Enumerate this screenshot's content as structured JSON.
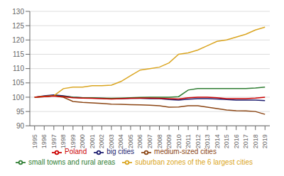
{
  "chart_data": {
    "type": "line",
    "x": [
      1995,
      1996,
      1997,
      1998,
      1999,
      2000,
      2001,
      2002,
      2003,
      2004,
      2005,
      2006,
      2007,
      2008,
      2009,
      2010,
      2011,
      2012,
      2013,
      2014,
      2015,
      2016,
      2017,
      2018,
      2019
    ],
    "series": [
      {
        "name": "big cities",
        "color": "#1a1a6e",
        "values": [
          100,
          100.5,
          100.8,
          100.5,
          100.0,
          99.8,
          99.7,
          99.6,
          99.5,
          99.5,
          99.6,
          99.6,
          99.5,
          99.5,
          99.2,
          99.0,
          99.3,
          99.5,
          99.5,
          99.4,
          99.2,
          99.0,
          99.0,
          99.0,
          98.8
        ]
      },
      {
        "name": "medium-sized cities",
        "color": "#8b4513",
        "values": [
          100,
          100.3,
          100.5,
          100.0,
          98.5,
          98.2,
          98.0,
          97.8,
          97.6,
          97.5,
          97.4,
          97.3,
          97.2,
          97.0,
          96.5,
          96.6,
          97.0,
          97.0,
          96.5,
          96.0,
          95.5,
          95.3,
          95.2,
          95.0,
          94.0
        ]
      },
      {
        "name": "small towns and rural areas",
        "color": "#2e7d32",
        "values": [
          100,
          100.2,
          100.5,
          100.3,
          100.0,
          99.8,
          99.8,
          99.7,
          99.6,
          99.7,
          99.8,
          99.9,
          100.0,
          100.0,
          100.0,
          100.2,
          102.5,
          103.0,
          103.0,
          103.0,
          103.0,
          103.0,
          103.0,
          103.2,
          103.5
        ]
      },
      {
        "name": "suburban zones of the 6 largest cities",
        "color": "#daa520",
        "values": [
          100,
          100.3,
          100.5,
          103.0,
          103.5,
          103.5,
          104.0,
          104.0,
          104.2,
          105.5,
          107.5,
          109.5,
          110.0,
          110.5,
          112.0,
          115.0,
          115.5,
          116.5,
          118.0,
          119.5,
          120.0,
          121.0,
          122.0,
          123.5,
          124.5
        ]
      },
      {
        "name": "Poland",
        "color": "#cc0000",
        "values": [
          100,
          100.2,
          100.4,
          100.2,
          99.8,
          99.7,
          99.6,
          99.5,
          99.4,
          99.5,
          99.6,
          99.7,
          99.7,
          99.6,
          99.5,
          99.4,
          99.8,
          100.0,
          100.0,
          99.8,
          99.5,
          99.5,
          99.5,
          99.7,
          100.0
        ]
      }
    ],
    "xlim": [
      1994.5,
      2019.5
    ],
    "xticks": [
      1995,
      1996,
      1997,
      1998,
      1999,
      2000,
      2001,
      2002,
      2003,
      2004,
      2005,
      2006,
      2007,
      2008,
      2009,
      2010,
      2011,
      2012,
      2013,
      2014,
      2015,
      2016,
      2017,
      2018,
      2019
    ],
    "ylim": [
      90,
      130
    ],
    "yticks": [
      90,
      95,
      100,
      105,
      110,
      115,
      120,
      125,
      130
    ],
    "grid": true,
    "legend": "bottom"
  }
}
